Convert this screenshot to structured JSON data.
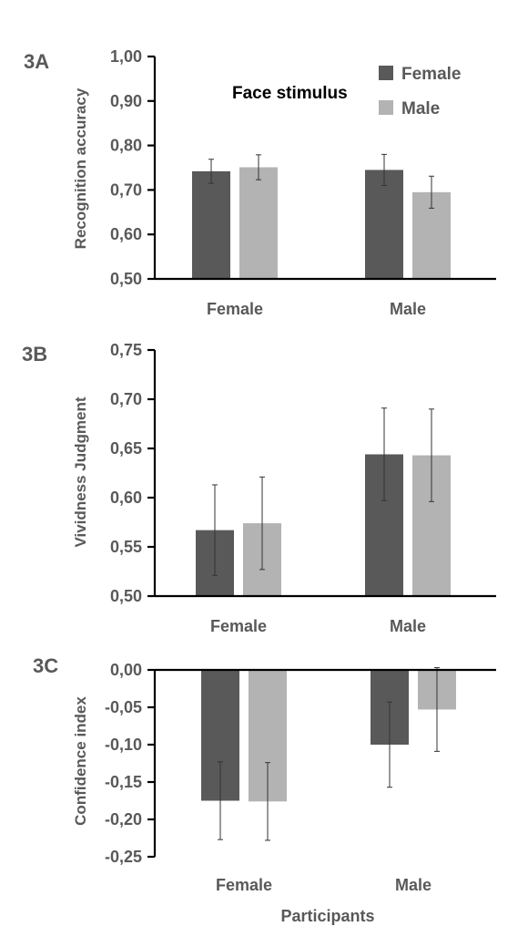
{
  "colors": {
    "female": "#595959",
    "male": "#b3b3b3",
    "axis": "#000000",
    "text": "#595959"
  },
  "legend": [
    {
      "name": "Female",
      "color": "#595959"
    },
    {
      "name": "Male",
      "color": "#b3b3b3"
    }
  ],
  "annotation": "Face stimulus",
  "x_title": "Participants",
  "chart_data": [
    {
      "panel": "3A",
      "type": "bar",
      "ylabel": "Recognition accuracy",
      "ylim": [
        0.5,
        1.0
      ],
      "yticks": [
        "0,50",
        "0,60",
        "0,70",
        "0,80",
        "0,90",
        "1,00"
      ],
      "categories": [
        "Female",
        "Male"
      ],
      "series": [
        {
          "name": "Female",
          "values": [
            0.742,
            0.745
          ],
          "errors": [
            0.027,
            0.035
          ]
        },
        {
          "name": "Male",
          "values": [
            0.751,
            0.695
          ],
          "errors": [
            0.028,
            0.036
          ]
        }
      ],
      "legend_position": "top-right",
      "grid": false
    },
    {
      "panel": "3B",
      "type": "bar",
      "ylabel": "Vividness Judgment",
      "ylim": [
        0.5,
        0.75
      ],
      "yticks": [
        "0,50",
        "0,55",
        "0,60",
        "0,65",
        "0,70",
        "0,75"
      ],
      "categories": [
        "Female",
        "Male"
      ],
      "series": [
        {
          "name": "Female",
          "values": [
            0.567,
            0.644
          ],
          "errors": [
            0.046,
            0.047
          ]
        },
        {
          "name": "Male",
          "values": [
            0.574,
            0.643
          ],
          "errors": [
            0.047,
            0.047
          ]
        }
      ],
      "grid": false
    },
    {
      "panel": "3C",
      "type": "bar",
      "ylabel": "Confidence index",
      "ylim": [
        -0.25,
        0.0
      ],
      "yticks": [
        "0,00",
        "-0,05",
        "-0,10",
        "-0,15",
        "-0,20",
        "-0,25"
      ],
      "categories": [
        "Female",
        "Male"
      ],
      "series": [
        {
          "name": "Female",
          "values": [
            -0.175,
            -0.1
          ],
          "errors": [
            0.052,
            0.057
          ]
        },
        {
          "name": "Male",
          "values": [
            -0.176,
            -0.053
          ],
          "errors": [
            0.052,
            0.056
          ]
        }
      ],
      "xlabel": "Participants",
      "grid": false
    }
  ]
}
